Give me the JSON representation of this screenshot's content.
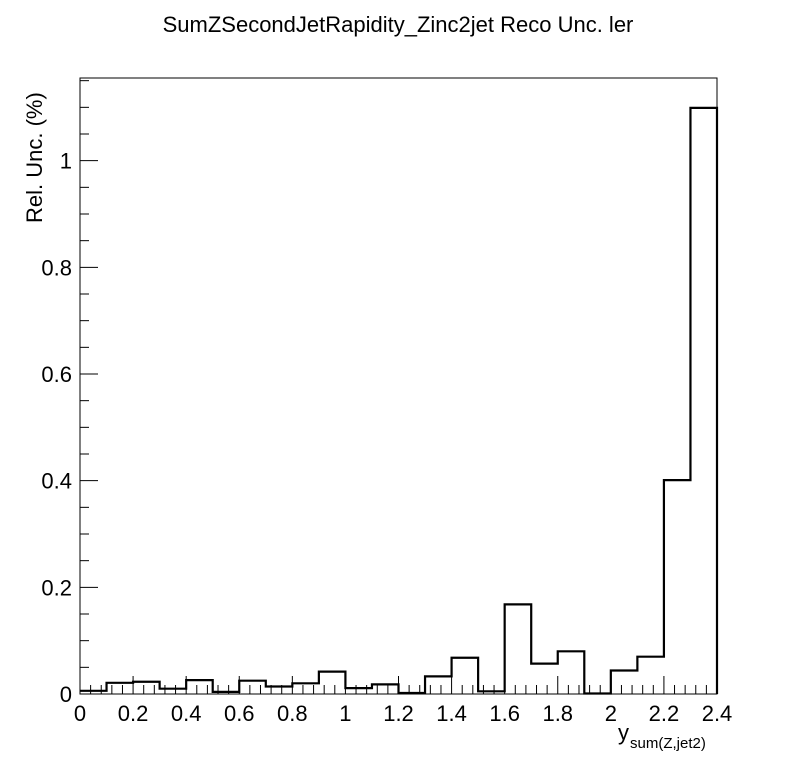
{
  "chart_data": {
    "type": "histogram",
    "title": "SumZSecondJetRapidity_Zinc2jet Reco Unc. ler",
    "ylabel": "Rel. Unc. (%)",
    "xlabel_main": "y",
    "xlabel_sub": "sum(Z,jet2)",
    "xlim": [
      0,
      2.4
    ],
    "ylim": [
      0,
      1.155
    ],
    "bin_edges": [
      0,
      0.1,
      0.2,
      0.3,
      0.4,
      0.5,
      0.6,
      0.7,
      0.8,
      0.9,
      1.0,
      1.1,
      1.2,
      1.3,
      1.4,
      1.5,
      1.6,
      1.7,
      1.8,
      1.9,
      2.0,
      2.1,
      2.2,
      2.3,
      2.4
    ],
    "values": [
      0.006,
      0.021,
      0.023,
      0.01,
      0.026,
      0.004,
      0.025,
      0.014,
      0.02,
      0.042,
      0.011,
      0.018,
      0.002,
      0.033,
      0.068,
      0.005,
      0.168,
      0.057,
      0.08,
      0.001,
      0.044,
      0.07,
      0.401,
      1.099
    ],
    "x_ticks": [
      "0",
      "0.2",
      "0.4",
      "0.6",
      "0.8",
      "1",
      "1.2",
      "1.4",
      "1.6",
      "1.8",
      "2",
      "2.2",
      "2.4"
    ],
    "y_ticks": [
      "0",
      "0.2",
      "0.4",
      "0.6",
      "0.8",
      "1"
    ],
    "grid": false,
    "legend": "none"
  }
}
